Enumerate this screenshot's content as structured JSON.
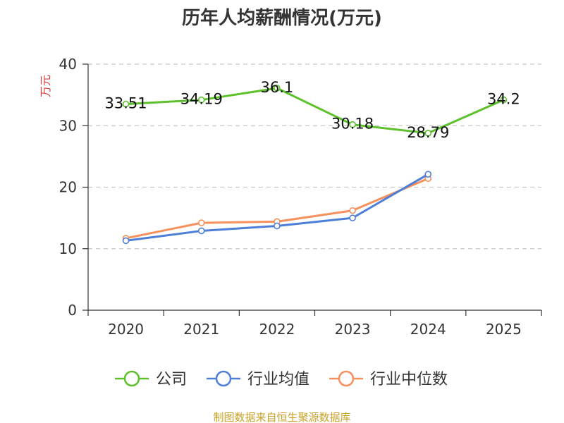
{
  "chart_data": {
    "type": "line",
    "title": "历年人均薪酬情况(万元)",
    "ylabel": "万元",
    "xlabel": "",
    "categories": [
      "2020",
      "2021",
      "2022",
      "2023",
      "2024",
      "2025"
    ],
    "ylim": [
      0,
      40
    ],
    "yticks": [
      0,
      10,
      20,
      30,
      40
    ],
    "grid": "horizontal-dashed",
    "legend_position": "bottom",
    "series": [
      {
        "name": "公司",
        "color": "#5cc12b",
        "values": [
          33.51,
          34.19,
          36.1,
          30.18,
          28.79,
          34.2
        ],
        "labels": [
          "33.51",
          "34.19",
          "36.1",
          "30.18",
          "28.79",
          "34.2"
        ]
      },
      {
        "name": "行业均值",
        "color": "#4e7fd8",
        "values": [
          11.3,
          12.9,
          13.7,
          15.0,
          22.1,
          null
        ]
      },
      {
        "name": "行业中位数",
        "color": "#f6905c",
        "values": [
          11.7,
          14.2,
          14.4,
          16.2,
          21.4,
          null
        ]
      }
    ],
    "source": "制图数据来自恒生聚源数据库",
    "source_color": "#c9a227",
    "ylabel_color": "#e03c3c"
  }
}
